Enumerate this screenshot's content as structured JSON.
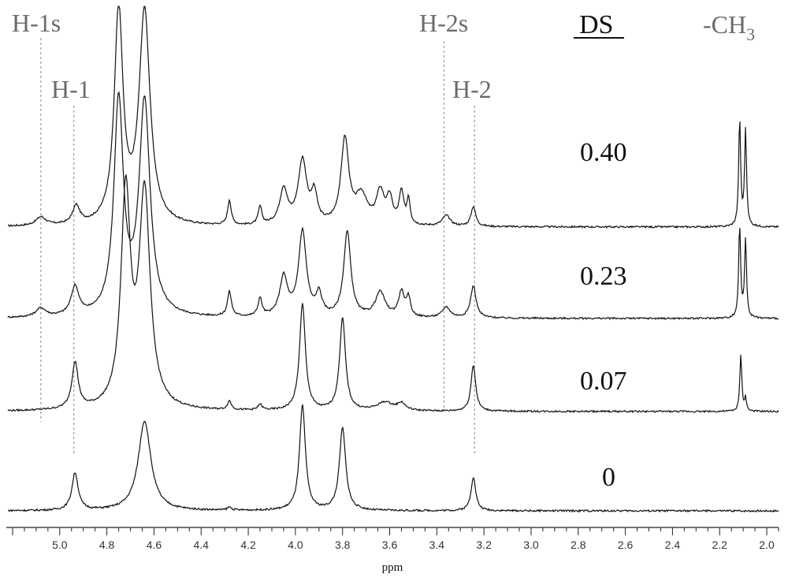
{
  "chart_data": {
    "type": "line",
    "xlabel": "ppm",
    "x_reversed": true,
    "xlim": [
      5.22,
      1.95
    ],
    "x_ticks": [
      "5.0",
      "4.8",
      "4.6",
      "4.4",
      "4.2",
      "4.0",
      "3.8",
      "3.6",
      "3.4",
      "3.2",
      "3.0",
      "2.8",
      "2.6",
      "2.4",
      "2.2",
      "2.0"
    ],
    "x_tick_values": [
      5.0,
      4.8,
      4.6,
      4.4,
      4.2,
      4.0,
      3.8,
      3.6,
      3.4,
      3.2,
      3.0,
      2.8,
      2.6,
      2.4,
      2.2,
      2.0
    ],
    "legend_title": "DS",
    "grid": false,
    "peak_labels": [
      {
        "text": "H-1s",
        "ppm": 5.08
      },
      {
        "text": "H-1",
        "ppm": 4.94
      },
      {
        "text": "H-2s",
        "ppm": 3.37
      },
      {
        "text": "H-2",
        "ppm": 3.24
      }
    ],
    "methyl_label": {
      "base": "-CH",
      "sub": "3",
      "ppm": 2.1
    },
    "series": [
      {
        "name": "0.40",
        "peaks": [
          [
            5.08,
            0.12,
            0.025
          ],
          [
            4.93,
            0.25,
            0.018
          ],
          [
            4.75,
            3.0,
            0.022
          ],
          [
            4.64,
            3.0,
            0.028
          ],
          [
            4.28,
            0.35,
            0.009
          ],
          [
            4.15,
            0.25,
            0.009
          ],
          [
            4.05,
            0.5,
            0.02
          ],
          [
            3.97,
            0.9,
            0.022
          ],
          [
            3.92,
            0.4,
            0.015
          ],
          [
            3.79,
            1.2,
            0.02
          ],
          [
            3.72,
            0.4,
            0.03
          ],
          [
            3.64,
            0.45,
            0.02
          ],
          [
            3.6,
            0.35,
            0.015
          ],
          [
            3.55,
            0.45,
            0.012
          ],
          [
            3.52,
            0.35,
            0.008
          ],
          [
            3.36,
            0.15,
            0.02
          ],
          [
            3.245,
            0.28,
            0.012
          ],
          [
            2.115,
            1.5,
            0.005
          ],
          [
            2.09,
            1.35,
            0.005
          ]
        ]
      },
      {
        "name": "0.23",
        "peaks": [
          [
            5.08,
            0.12,
            0.025
          ],
          [
            4.935,
            0.4,
            0.02
          ],
          [
            4.75,
            3.0,
            0.024
          ],
          [
            4.64,
            3.0,
            0.028
          ],
          [
            4.28,
            0.35,
            0.01
          ],
          [
            4.15,
            0.25,
            0.01
          ],
          [
            4.05,
            0.55,
            0.02
          ],
          [
            3.97,
            1.2,
            0.02
          ],
          [
            3.78,
            1.2,
            0.018
          ],
          [
            3.9,
            0.3,
            0.015
          ],
          [
            3.64,
            0.35,
            0.025
          ],
          [
            3.55,
            0.35,
            0.015
          ],
          [
            3.52,
            0.25,
            0.01
          ],
          [
            3.36,
            0.15,
            0.02
          ],
          [
            3.245,
            0.45,
            0.014
          ],
          [
            2.115,
            1.3,
            0.005
          ],
          [
            2.09,
            1.1,
            0.005
          ]
        ]
      },
      {
        "name": "0.07",
        "peaks": [
          [
            4.935,
            0.65,
            0.016
          ],
          [
            4.72,
            3.0,
            0.024
          ],
          [
            4.64,
            3.0,
            0.028
          ],
          [
            4.28,
            0.12,
            0.01
          ],
          [
            4.15,
            0.08,
            0.01
          ],
          [
            3.97,
            1.5,
            0.015
          ],
          [
            3.8,
            1.3,
            0.015
          ],
          [
            3.62,
            0.12,
            0.04
          ],
          [
            3.55,
            0.1,
            0.02
          ],
          [
            3.245,
            0.65,
            0.012
          ],
          [
            2.11,
            0.8,
            0.005
          ],
          [
            2.09,
            0.2,
            0.004
          ]
        ]
      },
      {
        "name": "0",
        "peaks": [
          [
            4.935,
            0.5,
            0.016
          ],
          [
            4.64,
            1.2,
            0.032
          ],
          [
            3.97,
            1.4,
            0.015
          ],
          [
            3.8,
            1.1,
            0.016
          ],
          [
            4.28,
            0.04,
            0.01
          ],
          [
            3.245,
            0.45,
            0.012
          ]
        ]
      }
    ]
  }
}
